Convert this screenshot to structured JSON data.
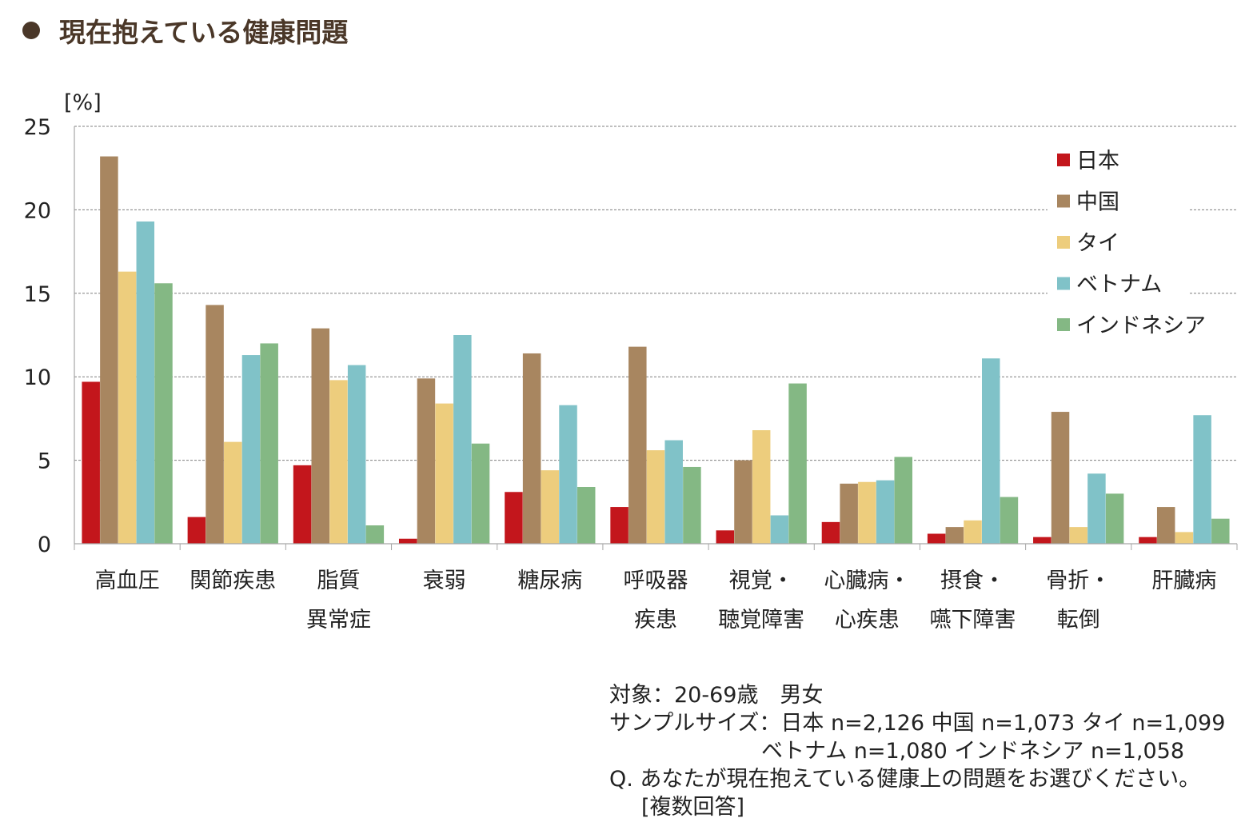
{
  "title": "現在抱えている健康問題",
  "colors": {
    "title": "#4a3728",
    "grid": "#7f7f7f",
    "axis": "#a6a6a6"
  },
  "chart_data": {
    "type": "bar",
    "ylabel": "[%]",
    "ylim": [
      0,
      25
    ],
    "yticks": [
      0,
      5,
      10,
      15,
      20,
      25
    ],
    "grid": true,
    "legend_position": "top-right",
    "categories": [
      [
        "高血圧"
      ],
      [
        "関節疾患"
      ],
      [
        "脂質",
        "異常症"
      ],
      [
        "衰弱"
      ],
      [
        "糖尿病"
      ],
      [
        "呼吸器",
        "疾患"
      ],
      [
        "視覚・",
        "聴覚障害"
      ],
      [
        "心臓病・",
        "心疾患"
      ],
      [
        "摂食・",
        "嚥下障害"
      ],
      [
        "骨折・",
        "転倒"
      ],
      [
        "肝臓病"
      ]
    ],
    "series": [
      {
        "name": "日本",
        "color": "#c3161c",
        "values": [
          9.7,
          1.6,
          4.7,
          0.3,
          3.1,
          2.2,
          0.8,
          1.3,
          0.6,
          0.4,
          0.4
        ]
      },
      {
        "name": "中国",
        "color": "#a88660",
        "values": [
          23.2,
          14.3,
          12.9,
          9.9,
          11.4,
          11.8,
          5.0,
          3.6,
          1.0,
          7.9,
          2.2
        ]
      },
      {
        "name": "タイ",
        "color": "#edcd7d",
        "values": [
          16.3,
          6.1,
          9.8,
          8.4,
          4.4,
          5.6,
          6.8,
          3.7,
          1.4,
          1.0,
          0.7
        ]
      },
      {
        "name": "ベトナム",
        "color": "#80c2c8",
        "values": [
          19.3,
          11.3,
          10.7,
          12.5,
          8.3,
          6.2,
          1.7,
          3.8,
          11.1,
          4.2,
          7.7
        ]
      },
      {
        "name": "インドネシア",
        "color": "#84b884",
        "values": [
          15.6,
          12.0,
          1.1,
          6.0,
          3.4,
          4.6,
          9.6,
          5.2,
          2.8,
          3.0,
          1.5
        ]
      }
    ]
  },
  "notes": {
    "target": "対象：20-69歳　男女",
    "sample_line1": "サンプルサイズ：日本 n=2,126 中国 n=1,073 タイ n=1,099",
    "sample_line2": "ベトナム n=1,080 インドネシア n=1,058",
    "question": "Q. あなたが現在抱えている健康上の問題をお選びください。",
    "question_note": "[複数回答]"
  }
}
